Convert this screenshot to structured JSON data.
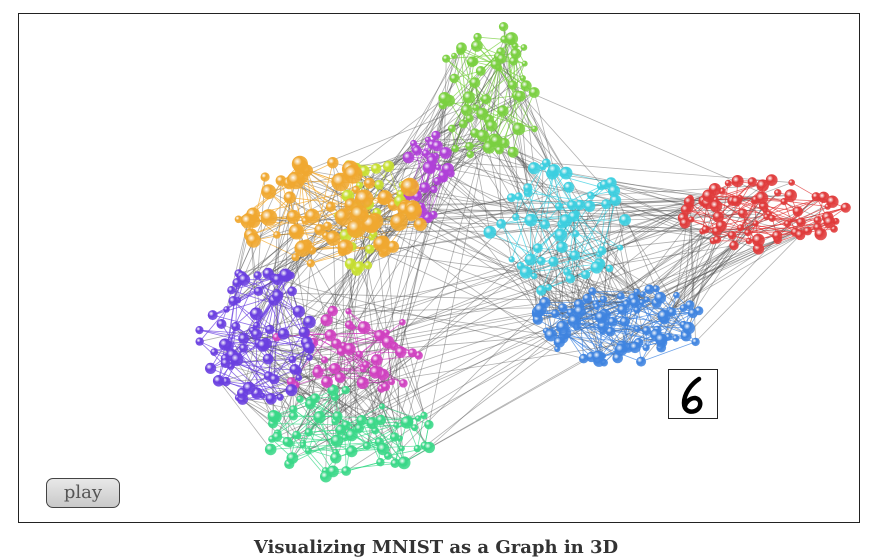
{
  "viz": {
    "play_label": "play",
    "caption": "Visualizing MNIST as a Graph in 3D",
    "hover_digit": "6"
  },
  "colors": {
    "orange": "#f0a830",
    "red": "#e03a3a",
    "cyan": "#3ccfe0",
    "blue": "#3f84e0",
    "green": "#7ad040",
    "lime": "#c8e030",
    "purple": "#6a3fe0",
    "magenta": "#d040c0",
    "violet": "#b040d8",
    "mint": "#3ad888",
    "edge": "#555555"
  },
  "clusters": [
    {
      "color": "green",
      "count": 60
    },
    {
      "color": "lime",
      "count": 30
    },
    {
      "color": "orange",
      "count": 70
    },
    {
      "color": "violet",
      "count": 35
    },
    {
      "color": "cyan",
      "count": 55
    },
    {
      "color": "red",
      "count": 70
    },
    {
      "color": "blue",
      "count": 90
    },
    {
      "color": "purple",
      "count": 80
    },
    {
      "color": "magenta",
      "count": 45
    },
    {
      "color": "mint",
      "count": 70
    }
  ]
}
